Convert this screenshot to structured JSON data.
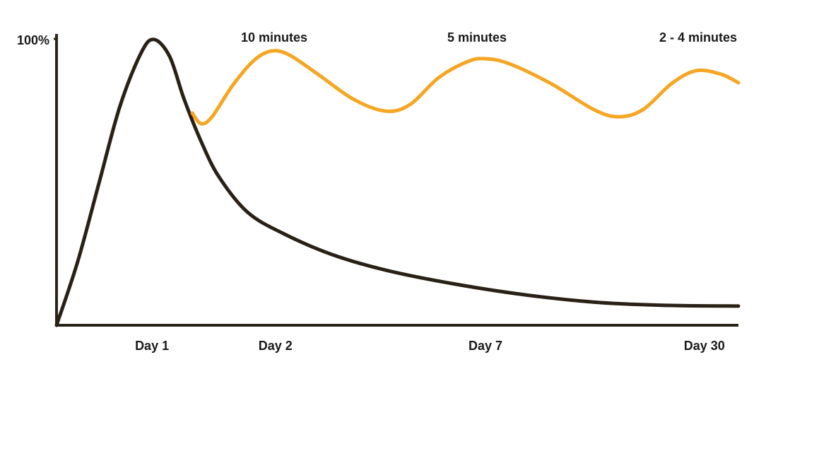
{
  "chart_data": {
    "type": "line",
    "annotations": [
      "10 minutes",
      "5 minutes",
      "2 - 4 minutes"
    ],
    "xlim": [
      0,
      10
    ],
    "xticks": [
      {
        "value": 1.4,
        "label": "Day 1"
      },
      {
        "value": 3.21,
        "label": "Day 2"
      },
      {
        "value": 6.29,
        "label": "Day 7"
      },
      {
        "value": 9.5,
        "label": "Day 30"
      }
    ],
    "ylim": [
      0,
      100
    ],
    "yticks": [
      {
        "value": 100,
        "label": "100%"
      }
    ],
    "grid": false,
    "series": [
      {
        "color": "#2a2116",
        "x": [
          0,
          0.31,
          0.62,
          0.93,
          1.24,
          1.43,
          1.66,
          1.87,
          2.12,
          2.38,
          2.8,
          3.32,
          4.04,
          4.87,
          5.91,
          6.94,
          7.98,
          9.02,
          10
        ],
        "values": [
          0,
          22.2,
          49.4,
          76.5,
          95.1,
          99.8,
          93.8,
          79.0,
          64.2,
          51.9,
          39.5,
          32.1,
          24.7,
          19.0,
          14.1,
          10.4,
          7.9,
          6.9,
          6.7
        ]
      },
      {
        "color": "#f5a623",
        "x": [
          1.99,
          2.12,
          2.28,
          2.59,
          2.9,
          3.16,
          3.42,
          3.83,
          4.35,
          4.82,
          5.18,
          5.6,
          6.01,
          6.27,
          6.63,
          7.25,
          7.88,
          8.24,
          8.6,
          9.02,
          9.38,
          9.74,
          10
        ],
        "values": [
          74.1,
          70.4,
          72.8,
          84.0,
          92.6,
          95.8,
          94.3,
          87.7,
          79.0,
          74.8,
          77.0,
          86.4,
          91.9,
          93.1,
          91.4,
          84.4,
          75.3,
          72.8,
          75.3,
          84.4,
          88.9,
          87.7,
          84.7
        ]
      }
    ]
  }
}
